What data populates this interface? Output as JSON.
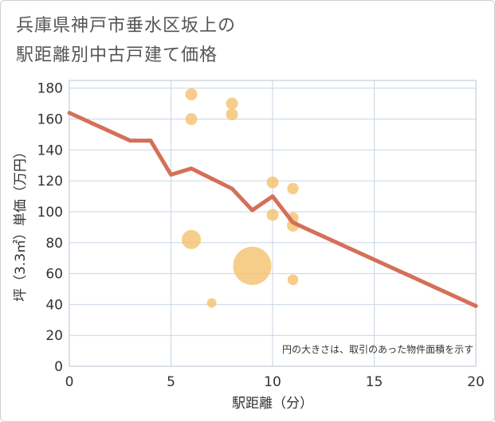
{
  "title": {
    "line1": "兵庫県神戸市垂水区坂上の",
    "line2": "駅距離別中古戸建て価格"
  },
  "chart_data": {
    "type": "scatter",
    "title": "兵庫県神戸市垂水区坂上の駅距離別中古戸建て価格",
    "xlabel": "駅距離（分）",
    "ylabel": "坪（3.3㎡）単価（万円）",
    "xlim": [
      0,
      20
    ],
    "ylim": [
      0,
      185
    ],
    "xticks": [
      0,
      5,
      10,
      15,
      20
    ],
    "yticks": [
      0,
      20,
      40,
      60,
      80,
      100,
      120,
      140,
      160,
      180
    ],
    "grid": true,
    "note": "円の大きさは、取引のあった物件面積を示す",
    "colors": {
      "bubble": "#f5c16e",
      "line": "#d4705a",
      "grid": "#c9d6e3",
      "plot_border": "#b8c4d0"
    },
    "points": [
      {
        "x": 6,
        "y": 176,
        "size": 1.0
      },
      {
        "x": 6,
        "y": 160,
        "size": 1.0
      },
      {
        "x": 6,
        "y": 82,
        "size": 1.6
      },
      {
        "x": 7,
        "y": 41,
        "size": 0.8
      },
      {
        "x": 8,
        "y": 170,
        "size": 1.0
      },
      {
        "x": 8,
        "y": 163,
        "size": 1.0
      },
      {
        "x": 9,
        "y": 65,
        "size": 3.2
      },
      {
        "x": 10,
        "y": 119,
        "size": 1.0
      },
      {
        "x": 10,
        "y": 98,
        "size": 1.0
      },
      {
        "x": 11,
        "y": 115,
        "size": 0.95
      },
      {
        "x": 11,
        "y": 96,
        "size": 0.95
      },
      {
        "x": 11,
        "y": 91,
        "size": 1.0
      },
      {
        "x": 11,
        "y": 56,
        "size": 0.9
      }
    ],
    "trend": {
      "x": [
        0,
        3,
        4,
        5,
        6,
        8,
        9,
        10,
        11,
        20
      ],
      "y": [
        164,
        146,
        146,
        124,
        128,
        115,
        101,
        110,
        93,
        39
      ]
    }
  }
}
